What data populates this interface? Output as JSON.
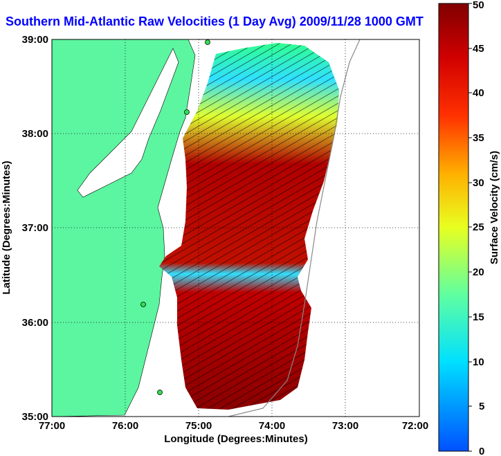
{
  "title": "Southern Mid-Atlantic Raw Velocities (1 Day Avg) 2009/11/28 1000 GMT",
  "x_axis": {
    "label": "Longitude (Degrees:Minutes)",
    "ticks": [
      "77:00",
      "76:00",
      "75:00",
      "74:00",
      "73:00",
      "72:00"
    ]
  },
  "y_axis": {
    "label": "Latitude (Degrees:Minutes)",
    "ticks": [
      "39:00",
      "38:00",
      "37:00",
      "36:00",
      "35:00"
    ]
  },
  "colorbar": {
    "label": "Surface Velocity (cm/s)",
    "ticks": [
      "50",
      "45",
      "40",
      "35",
      "30",
      "25",
      "20",
      "15",
      "10",
      "5",
      "0"
    ],
    "range": [
      0,
      50
    ]
  },
  "colors": {
    "land": "#5cf5a0",
    "title": "#0000ff",
    "grid": "#000000"
  }
}
